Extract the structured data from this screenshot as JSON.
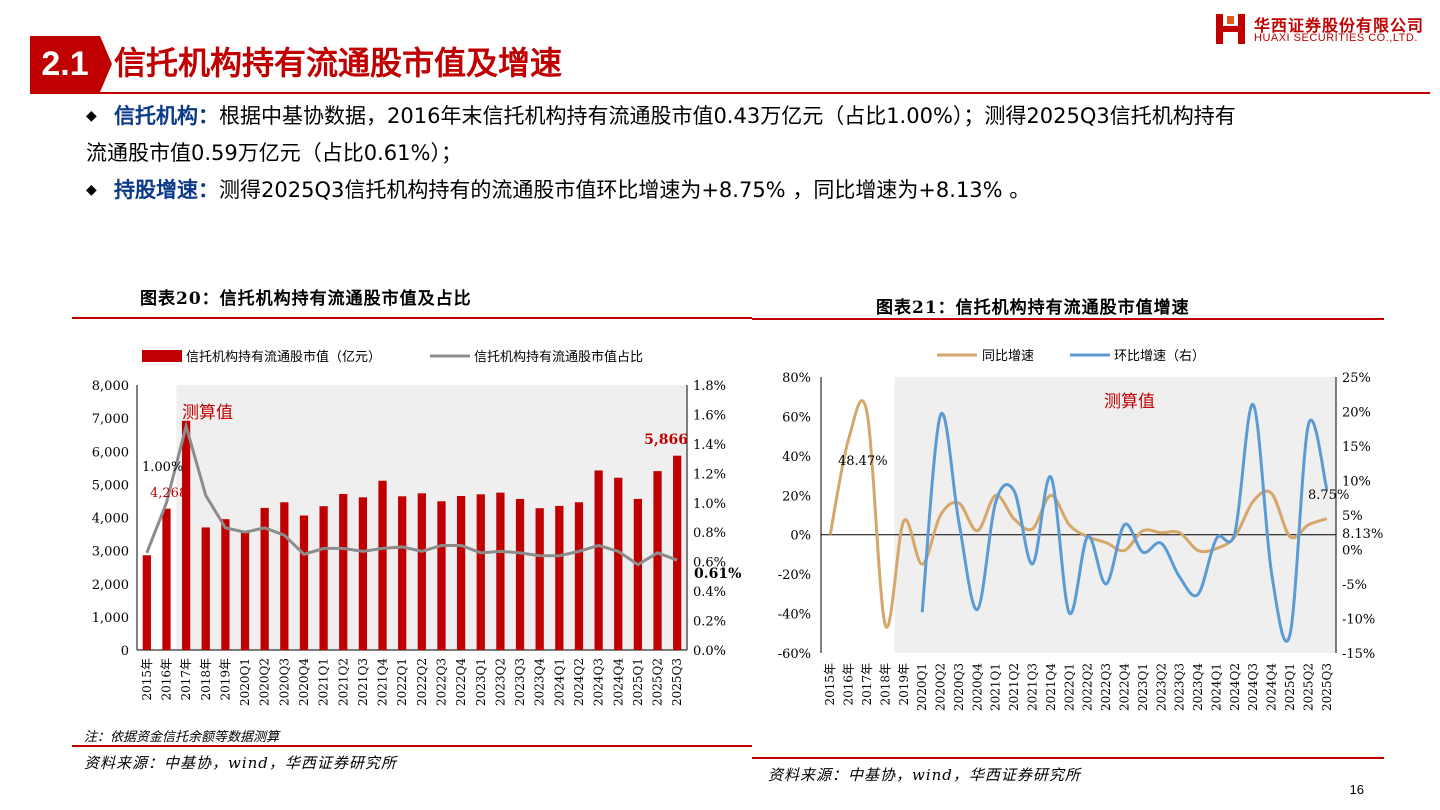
{
  "header": {
    "section_number": "2.1",
    "title": "信托机构持有流通股市值及增速",
    "logo_cn": "华西证券股份有限公司",
    "logo_en": "HUAXI SECURITIES CO.,LTD."
  },
  "bullets": [
    {
      "keyword": "信托机构：",
      "text": "根据中基协数据，2016年末信托机构持有流通股市值0.43万亿元（占比1.00%）；测得2025Q3信托机构持有",
      "text_cont": "流通股市值0.59万亿元（占比0.61%）；"
    },
    {
      "keyword": "持股增速：",
      "text": "测得2025Q3信托机构持有的流通股市值环比增速为+8.75% ，同比增速为+8.13% 。"
    }
  ],
  "figure_left": {
    "title": "图表20：信托机构持有流通股市值及占比",
    "note": "注：依据资金信托余额等数据测算",
    "source": "资料来源：中基协，wind，华西证券研究所"
  },
  "figure_right": {
    "title": "图表21：信托机构持有流通股市值增速",
    "source": "资料来源：中基协，wind，华西证券研究所"
  },
  "page_number": "16",
  "colors": {
    "brand_red": "#c00000",
    "bar_red": "#c00000",
    "ratio_gray": "#8c8c8c",
    "yoy_tan": "#d6a76a",
    "qoq_blue": "#5b9bd5",
    "shade": "#efefef"
  },
  "chart_data": [
    {
      "type": "bar",
      "categories": [
        "2015年",
        "2016年",
        "2017年",
        "2018年",
        "2019年",
        "2020Q1",
        "2020Q2",
        "2020Q3",
        "2020Q4",
        "2021Q1",
        "2021Q2",
        "2021Q3",
        "2021Q4",
        "2022Q1",
        "2022Q2",
        "2022Q3",
        "2022Q4",
        "2023Q1",
        "2023Q2",
        "2023Q3",
        "2023Q4",
        "2024Q1",
        "2024Q2",
        "2024Q3",
        "2024Q4",
        "2025Q1",
        "2025Q2",
        "2025Q3"
      ],
      "series": [
        {
          "name": "信托机构持有流通股市值（亿元）",
          "type": "bar",
          "axis": "left",
          "values": [
            2860,
            4268,
            6920,
            3700,
            3950,
            3590,
            4290,
            4460,
            4060,
            4340,
            4710,
            4610,
            5110,
            4640,
            4730,
            4490,
            4650,
            4700,
            4750,
            4560,
            4280,
            4350,
            4460,
            5420,
            5200,
            4560,
            5400,
            5866
          ]
        },
        {
          "name": "信托机构持有流通股市值占比",
          "type": "line",
          "axis": "right",
          "values": [
            0.66,
            1.0,
            1.52,
            1.05,
            0.83,
            0.8,
            0.83,
            0.78,
            0.65,
            0.69,
            0.69,
            0.67,
            0.69,
            0.7,
            0.67,
            0.71,
            0.71,
            0.66,
            0.67,
            0.66,
            0.64,
            0.64,
            0.67,
            0.71,
            0.67,
            0.58,
            0.66,
            0.61
          ]
        }
      ],
      "ylim_left": [
        0,
        8000
      ],
      "yticks_left": [
        "0",
        "1,000",
        "2,000",
        "3,000",
        "4,000",
        "5,000",
        "6,000",
        "7,000",
        "8,000"
      ],
      "ylim_right": [
        0,
        1.8
      ],
      "yticks_right": [
        "0.0%",
        "0.2%",
        "0.4%",
        "0.6%",
        "0.8%",
        "1.0%",
        "1.2%",
        "1.4%",
        "1.6%",
        "1.8%"
      ],
      "shaded_from_category": "2017年",
      "shade_label": "测算值",
      "annotations": {
        "first_ratio": "1.00%",
        "first_value": "4,268",
        "last_value": "5,866",
        "last_ratio": "0.61%"
      },
      "legend": "top"
    },
    {
      "type": "line",
      "categories": [
        "2015年",
        "2016年",
        "2017年",
        "2018年",
        "2019年",
        "2020Q1",
        "2020Q2",
        "2020Q3",
        "2020Q4",
        "2021Q1",
        "2021Q2",
        "2021Q3",
        "2021Q4",
        "2022Q1",
        "2022Q2",
        "2022Q3",
        "2022Q4",
        "2023Q1",
        "2023Q2",
        "2023Q3",
        "2023Q4",
        "2024Q1",
        "2024Q2",
        "2024Q3",
        "2024Q4",
        "2025Q1",
        "2025Q2",
        "2025Q3"
      ],
      "series": [
        {
          "name": "同比增速",
          "axis": "left",
          "values": [
            0,
            48.47,
            62,
            -46,
            7,
            -15,
            10,
            16,
            2,
            20,
            8,
            3,
            20,
            5,
            -1,
            -4,
            -8,
            2,
            1,
            1,
            -8,
            -7,
            -1,
            17,
            21,
            -1,
            5,
            8.13
          ]
        },
        {
          "name": "环比增速（右）",
          "axis": "right",
          "values": [
            null,
            null,
            null,
            null,
            null,
            -9.1,
            19.5,
            3.9,
            -8.7,
            6.9,
            8.5,
            -2.1,
            10.5,
            -9.2,
            1.9,
            -5,
            3.6,
            -0.4,
            0.9,
            -4,
            -6.5,
            1.6,
            2.4,
            21,
            -3.5,
            -12.3,
            18.1,
            8.75
          ]
        }
      ],
      "ylim_left": [
        -60,
        80
      ],
      "yticks_left": [
        "-60%",
        "-40%",
        "-20%",
        "0%",
        "20%",
        "40%",
        "60%",
        "80%"
      ],
      "ylim_right": [
        -15,
        25
      ],
      "yticks_right": [
        "-15%",
        "-10%",
        "-5%",
        "0%",
        "5%",
        "10%",
        "15%",
        "20%",
        "25%"
      ],
      "shaded_from_category": "2019年",
      "shade_label": "测算值",
      "annotations": {
        "yoy_2016": "48.47%",
        "qoq_last": "8.75%",
        "yoy_last": "8.13%"
      },
      "legend": "top"
    }
  ]
}
